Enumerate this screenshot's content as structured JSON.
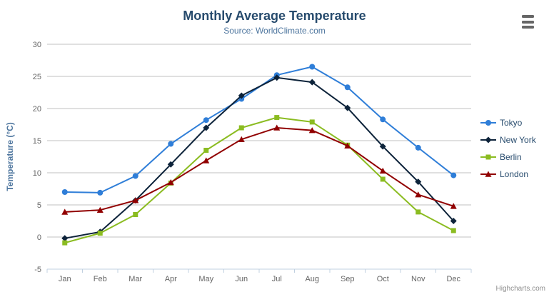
{
  "header": {
    "title": "Monthly Average Temperature",
    "subtitle": "Source: WorldClimate.com"
  },
  "credits": {
    "label": "Highcharts.com"
  },
  "export_menu": {
    "icon": "hamburger-menu-icon"
  },
  "colors": {
    "title": "#274b6d",
    "subtitle": "#4d759e",
    "axis_title": "#4d759e",
    "grid_line": "#c0c0c0",
    "axis_line": "#c0d0e0",
    "tick_label": "#666666",
    "legend_text": "#274b6d",
    "credits_text": "#909090",
    "menu_icon": "#666666"
  },
  "chart_data": {
    "type": "line",
    "title": "Monthly Average Temperature",
    "subtitle": "Source: WorldClimate.com",
    "xlabel": "",
    "ylabel": "Temperature (°C)",
    "ylim": [
      -5,
      30
    ],
    "ytick_interval": 5,
    "ytick_labels": [
      "-5",
      "0",
      "5",
      "10",
      "15",
      "20",
      "25",
      "30"
    ],
    "grid": true,
    "legend_position": "right",
    "categories": [
      "Jan",
      "Feb",
      "Mar",
      "Apr",
      "May",
      "Jun",
      "Jul",
      "Aug",
      "Sep",
      "Oct",
      "Nov",
      "Dec"
    ],
    "series": [
      {
        "name": "Tokyo",
        "color": "#2f7ed8",
        "marker": "circle",
        "values": [
          7.0,
          6.9,
          9.5,
          14.5,
          18.2,
          21.5,
          25.2,
          26.5,
          23.3,
          18.3,
          13.9,
          9.6
        ]
      },
      {
        "name": "New York",
        "color": "#0d233a",
        "marker": "diamond",
        "values": [
          -0.2,
          0.8,
          5.7,
          11.3,
          17.0,
          22.0,
          24.8,
          24.1,
          20.1,
          14.1,
          8.6,
          2.5
        ]
      },
      {
        "name": "Berlin",
        "color": "#8bbc21",
        "marker": "square",
        "values": [
          -0.9,
          0.6,
          3.5,
          8.4,
          13.5,
          17.0,
          18.6,
          17.9,
          14.3,
          9.0,
          3.9,
          1.0
        ]
      },
      {
        "name": "London",
        "color": "#910000",
        "marker": "triangle",
        "values": [
          3.9,
          4.2,
          5.7,
          8.5,
          11.9,
          15.2,
          17.0,
          16.6,
          14.2,
          10.3,
          6.6,
          4.8
        ]
      }
    ]
  }
}
